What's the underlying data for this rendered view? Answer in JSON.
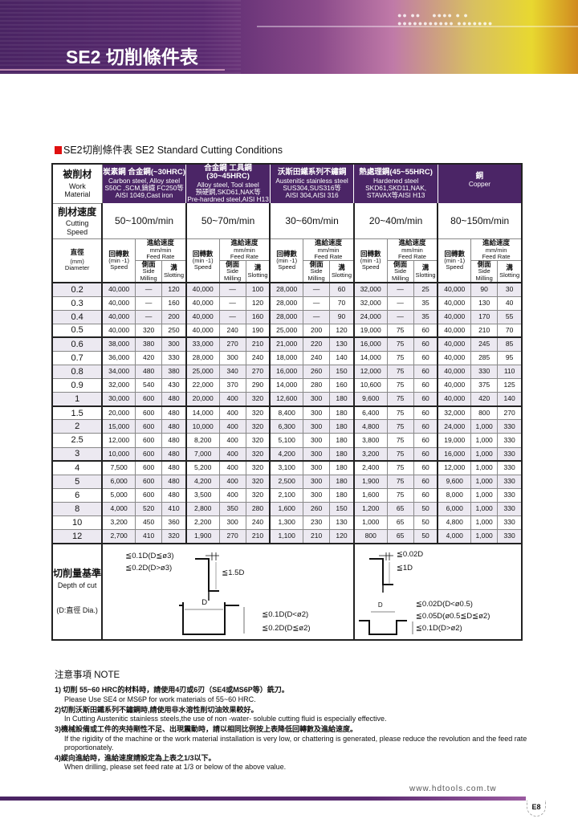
{
  "header": {
    "title": "SE2 切削條件表"
  },
  "subtitle": "SE2切削條件表 SE2 Standard Cutting Conditions",
  "colors": {
    "brand_purple": "#4b2566",
    "accent_red": "#e01010"
  },
  "table": {
    "row_labels": {
      "material": {
        "zh": "被削材",
        "en1": "Work",
        "en2": "Material"
      },
      "speed": {
        "zh": "削材速度",
        "en1": "Cutting",
        "en2": "Speed"
      },
      "diameter": {
        "zh": "直徑",
        "en1": "(mm)",
        "en2": "Diameter"
      }
    },
    "materials": [
      {
        "l1": "炭素鋼 合金鋼(~30HRC)",
        "l2": "Carbon steel, Alloy steel",
        "l3": "S50C ,SCM,鑄鐵 FC250等",
        "l4": "AISI 1049,Cast iron",
        "speed": "50~100m/min"
      },
      {
        "l1": "合金鋼 工具鋼(30~45HRC)",
        "l2": "Alloy steel, Tool steel",
        "l3": "預硬鋼,SKD61,NAK等",
        "l4": "Pre-hardned steel,AISI H13",
        "speed": "50~70m/min"
      },
      {
        "l1": "沃斯田鐵系列不鏽鋼",
        "l2": "Austenitic stainless steel",
        "l3": "SUS304,SUS316等",
        "l4": "AISI 304,AISI 316",
        "speed": "30~60m/min"
      },
      {
        "l1": "熱處理鋼(45~55HRC)",
        "l2": "Hardened steel",
        "l3": "SKD61,SKD11,NAK,",
        "l4": "STAVAX等AISI H13",
        "speed": "20~40m/min"
      },
      {
        "l1": "銅",
        "l2": "Copper",
        "l3": "",
        "l4": "",
        "speed": "80~150m/min"
      }
    ],
    "subheaders": {
      "rpm_zh": "回轉數",
      "rpm_unit": "(min -1)",
      "rpm_en": "Speed",
      "feed_zh": "進給速度",
      "feed_unit": "mm/min",
      "feed_en": "Feed Rate",
      "side_zh": "側面",
      "side_en": "Side Milling",
      "slot_zh": "溝",
      "slot_en": "Slotting"
    },
    "rows": [
      [
        "0.2",
        "40,000",
        "—",
        "120",
        "40,000",
        "—",
        "100",
        "28,000",
        "—",
        "60",
        "32,000",
        "—",
        "25",
        "40,000",
        "90",
        "30"
      ],
      [
        "0.3",
        "40,000",
        "—",
        "160",
        "40,000",
        "—",
        "120",
        "28,000",
        "—",
        "70",
        "32,000",
        "—",
        "35",
        "40,000",
        "130",
        "40"
      ],
      [
        "0.4",
        "40,000",
        "—",
        "200",
        "40,000",
        "—",
        "160",
        "28,000",
        "—",
        "90",
        "24,000",
        "—",
        "35",
        "40,000",
        "170",
        "55"
      ],
      [
        "0.5",
        "40,000",
        "320",
        "250",
        "40,000",
        "240",
        "190",
        "25,000",
        "200",
        "120",
        "19,000",
        "75",
        "60",
        "40,000",
        "210",
        "70"
      ],
      [
        "0.6",
        "38,000",
        "380",
        "300",
        "33,000",
        "270",
        "210",
        "21,000",
        "220",
        "130",
        "16,000",
        "75",
        "60",
        "40,000",
        "245",
        "85"
      ],
      [
        "0.7",
        "36,000",
        "420",
        "330",
        "28,000",
        "300",
        "240",
        "18,000",
        "240",
        "140",
        "14,000",
        "75",
        "60",
        "40,000",
        "285",
        "95"
      ],
      [
        "0.8",
        "34,000",
        "480",
        "380",
        "25,000",
        "340",
        "270",
        "16,000",
        "260",
        "150",
        "12,000",
        "75",
        "60",
        "40,000",
        "330",
        "110"
      ],
      [
        "0.9",
        "32,000",
        "540",
        "430",
        "22,000",
        "370",
        "290",
        "14,000",
        "280",
        "160",
        "10,600",
        "75",
        "60",
        "40,000",
        "375",
        "125"
      ],
      [
        "1",
        "30,000",
        "600",
        "480",
        "20,000",
        "400",
        "320",
        "12,600",
        "300",
        "180",
        "9,600",
        "75",
        "60",
        "40,000",
        "420",
        "140"
      ],
      [
        "1.5",
        "20,000",
        "600",
        "480",
        "14,000",
        "400",
        "320",
        "8,400",
        "300",
        "180",
        "6,400",
        "75",
        "60",
        "32,000",
        "800",
        "270"
      ],
      [
        "2",
        "15,000",
        "600",
        "480",
        "10,000",
        "400",
        "320",
        "6,300",
        "300",
        "180",
        "4,800",
        "75",
        "60",
        "24,000",
        "1,000",
        "330"
      ],
      [
        "2.5",
        "12,000",
        "600",
        "480",
        "8,200",
        "400",
        "320",
        "5,100",
        "300",
        "180",
        "3,800",
        "75",
        "60",
        "19,000",
        "1,000",
        "330"
      ],
      [
        "3",
        "10,000",
        "600",
        "480",
        "7,000",
        "400",
        "320",
        "4,200",
        "300",
        "180",
        "3,200",
        "75",
        "60",
        "16,000",
        "1,000",
        "330"
      ],
      [
        "4",
        "7,500",
        "600",
        "480",
        "5,200",
        "400",
        "320",
        "3,100",
        "300",
        "180",
        "2,400",
        "75",
        "60",
        "12,000",
        "1,000",
        "330"
      ],
      [
        "5",
        "6,000",
        "600",
        "480",
        "4,200",
        "400",
        "320",
        "2,500",
        "300",
        "180",
        "1,900",
        "75",
        "60",
        "9,600",
        "1,000",
        "330"
      ],
      [
        "6",
        "5,000",
        "600",
        "480",
        "3,500",
        "400",
        "320",
        "2,100",
        "300",
        "180",
        "1,600",
        "75",
        "60",
        "8,000",
        "1,000",
        "330"
      ],
      [
        "8",
        "4,000",
        "520",
        "410",
        "2,800",
        "350",
        "280",
        "1,600",
        "260",
        "150",
        "1,200",
        "65",
        "50",
        "6,000",
        "1,000",
        "330"
      ],
      [
        "10",
        "3,200",
        "450",
        "360",
        "2,200",
        "300",
        "240",
        "1,300",
        "230",
        "130",
        "1,000",
        "65",
        "50",
        "4,800",
        "1,000",
        "330"
      ],
      [
        "12",
        "2,700",
        "410",
        "320",
        "1,900",
        "270",
        "210",
        "1,100",
        "210",
        "120",
        "800",
        "65",
        "50",
        "4,000",
        "1,000",
        "330"
      ]
    ],
    "depth": {
      "label_zh": "切削量基準",
      "label_en": "Depth of cut",
      "label_note": "(D:直徑 Dia.)",
      "left": {
        "side1": "≦0.1D(D≦ø3)",
        "side2": "≦0.2D(D>ø3)",
        "side_len": "≦1.5D",
        "d": "D",
        "slot1": "≦0.1D(D<ø2)",
        "slot2": "≦0.2D(D≦ø2)"
      },
      "right": {
        "side1": "≦0.02D",
        "side_len": "≦1D",
        "d": "D",
        "slot1": "≦0.02D(D<ø0.5)",
        "slot2": "≦0.05D(ø0.5≦D≦ø2)",
        "slot3": "≦0.1D(D>ø2)"
      }
    }
  },
  "notes": {
    "title": "注意事項  NOTE",
    "items": [
      {
        "zh": "1) 切削 55~60 HRC的材料時，請使用4刃或6刃（SE4或MS6P等）銑刀。",
        "en": "Please Use SE4 or MS6P for work materials of 55~60 HRC."
      },
      {
        "zh": "2)切削沃斯田鐵系列不鏽鋼時,請使用非水溶性削切油效果較好。",
        "en": "In Cutting Austenitic stainless steels,the use of non -water- soluble cutting fluid is especially effective."
      },
      {
        "zh": "3)機械設備或工件的夾持剛性不足、出現震動時，請以相同比例按上表降低回轉數及進給速度。",
        "en": "If the rigidity of the machine or the work material installation is very low, or chattering is generated, please reduce the revolution and the feed rate proportionately."
      },
      {
        "zh": "4)縱向進給時，進給速度請設定為上表之1/3以下。",
        "en": "When drilling, please set feed rate at 1/3 or below of the above value."
      }
    ]
  },
  "footer": {
    "url": "www.hdtools.com.tw",
    "page": "E8"
  }
}
